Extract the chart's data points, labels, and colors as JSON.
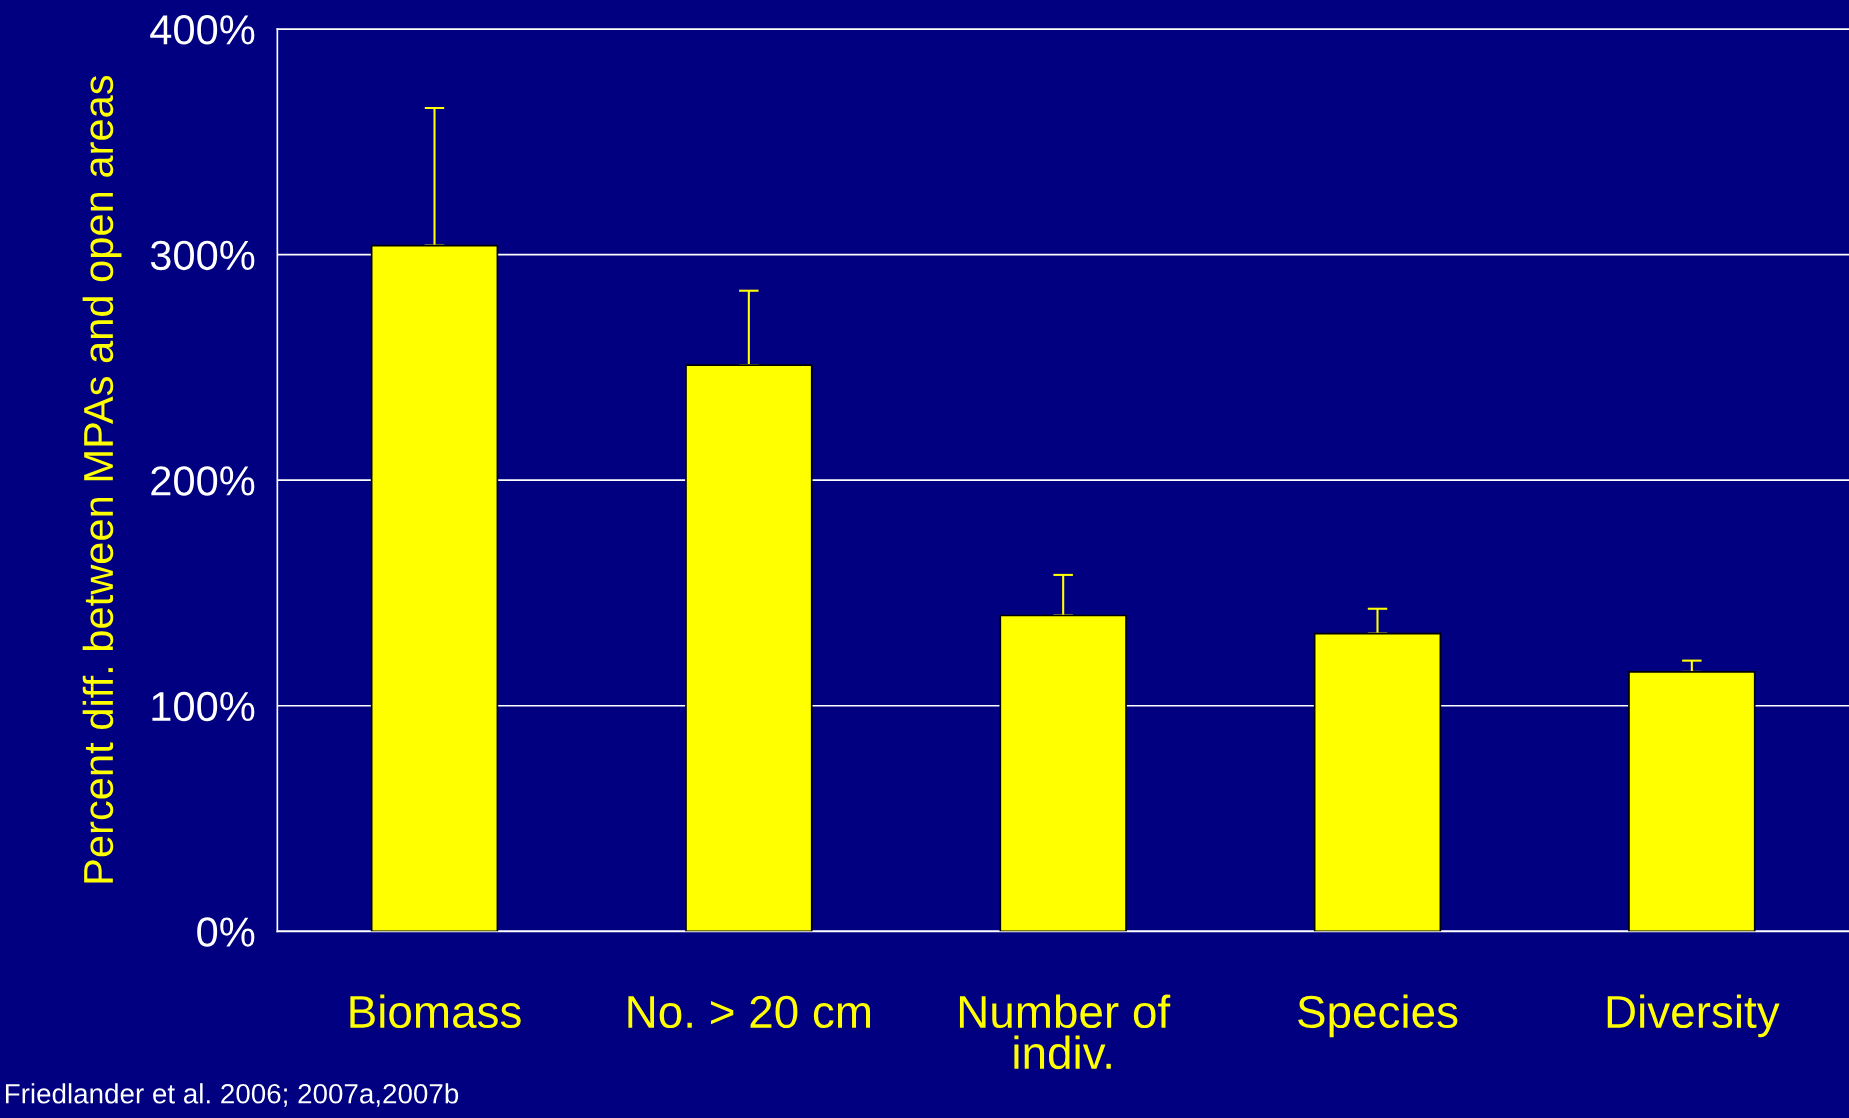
{
  "chart_data": {
    "type": "bar",
    "ylabel": "Percent diff. between MPAs and open areas",
    "categories": [
      "Biomass",
      "No. > 20 cm",
      "Number of\nindiv.",
      "Species",
      "Diversity"
    ],
    "values": [
      304,
      251,
      140,
      132,
      115
    ],
    "errors": [
      [
        304,
        365
      ],
      [
        251,
        284
      ],
      [
        140,
        158
      ],
      [
        132,
        143
      ],
      [
        115,
        120
      ]
    ],
    "color": "#ffff00",
    "ylim": [
      0,
      400
    ],
    "yticks": [
      {
        "value": 0,
        "label": "0%"
      },
      {
        "value": 100,
        "label": "100%"
      },
      {
        "value": 200,
        "label": "200%"
      },
      {
        "value": 300,
        "label": "300%"
      },
      {
        "value": 400,
        "label": "400%"
      }
    ],
    "grid": "y",
    "annotations": [
      "Friedlander et al. 2006; 2007a,2007b"
    ]
  }
}
